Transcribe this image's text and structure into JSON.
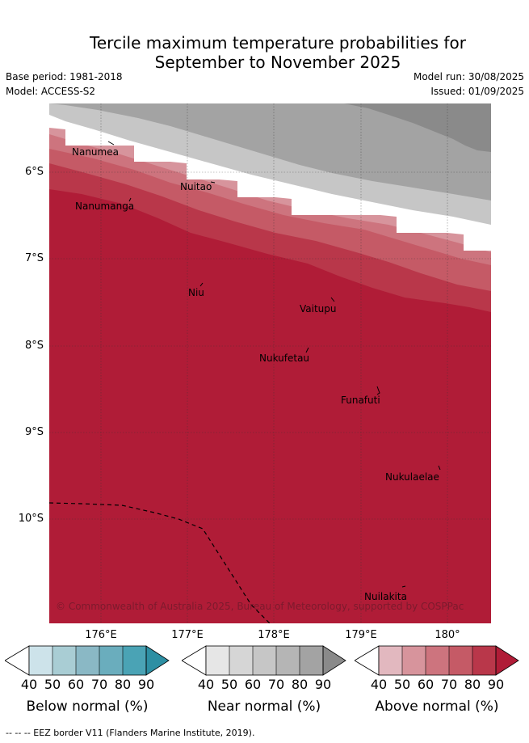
{
  "title_line1": "Tercile maximum temperature probabilities for",
  "title_line2": "September to November 2025",
  "base_period": "Base period: 1981-2018",
  "model": "Model: ACCESS-S2",
  "model_run": "Model run: 30/08/2025",
  "issued": "Issued: 01/09/2025",
  "lat_labels": [
    "6°S",
    "7°S",
    "8°S",
    "9°S",
    "10°S"
  ],
  "lon_labels": [
    "176°E",
    "177°E",
    "178°E",
    "179°E",
    "180°"
  ],
  "islands": [
    {
      "name": "Nanumea"
    },
    {
      "name": "Nuitao"
    },
    {
      "name": "Nanumanga"
    },
    {
      "name": "Niu"
    },
    {
      "name": "Vaitupu"
    },
    {
      "name": "Nukufetau"
    },
    {
      "name": "Funafuti"
    },
    {
      "name": "Nukulaelae"
    },
    {
      "name": "Nuilakita"
    }
  ],
  "copyright": "© Commonwealth of Australia 2025, Bureau of Meteorology, supported by COSPPac",
  "colorbars": [
    {
      "title": "Below normal (%)",
      "colors": [
        "#cde3ea",
        "#a9cdd4",
        "#8ab8c5",
        "#6aadbd",
        "#4aa3b5",
        "#2d8fa3"
      ]
    },
    {
      "title": "Near normal (%)",
      "colors": [
        "#e6e6e6",
        "#d6d6d6",
        "#c6c6c6",
        "#b5b5b5",
        "#a3a3a3",
        "#8a8a8a"
      ]
    },
    {
      "title": "Above normal (%)",
      "colors": [
        "#e2b8bf",
        "#d7949c",
        "#cd747e",
        "#c55a66",
        "#b9374a",
        "#b01c37"
      ]
    }
  ],
  "colorbar_ticks": [
    "40",
    "50",
    "60",
    "70",
    "80",
    "90"
  ],
  "footer": "--  --  -- EEZ border V11 (Flanders Marine Institute, 2019)."
}
